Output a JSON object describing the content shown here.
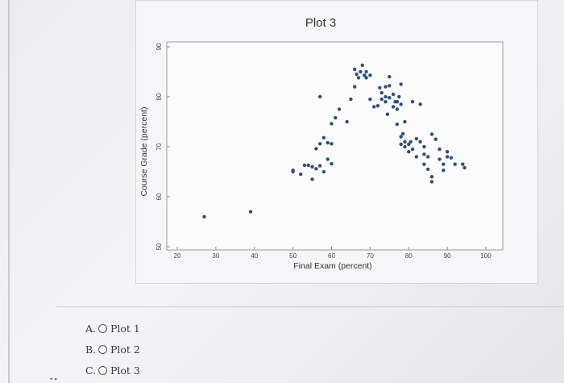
{
  "chart_data": {
    "type": "scatter",
    "title": "Plot 3",
    "xlabel": "Final Exam (percent)",
    "ylabel": "Course Grade (percent)",
    "xlim": [
      20,
      100
    ],
    "ylim": [
      50,
      90
    ],
    "xticks": [
      "20",
      "30",
      "40",
      "50",
      "60",
      "70",
      "80",
      "90",
      "100"
    ],
    "yticks": [
      "50",
      "60",
      "70",
      "80",
      "90"
    ],
    "grid": false,
    "point_color": "#2f4f7a",
    "points": [
      [
        27,
        56
      ],
      [
        39,
        57
      ],
      [
        50,
        65
      ],
      [
        50,
        65.3
      ],
      [
        52,
        64.5
      ],
      [
        53,
        66.3
      ],
      [
        54,
        66.3
      ],
      [
        55,
        63.5
      ],
      [
        55,
        66
      ],
      [
        56,
        65.6
      ],
      [
        56,
        69.6
      ],
      [
        57,
        66.2
      ],
      [
        57,
        70.6
      ],
      [
        58,
        65
      ],
      [
        58,
        71.8
      ],
      [
        59,
        67.5
      ],
      [
        59,
        70.8
      ],
      [
        60,
        66.6
      ],
      [
        60,
        70.6
      ],
      [
        57,
        80
      ],
      [
        60,
        74.6
      ],
      [
        61,
        75.8
      ],
      [
        62,
        77.5
      ],
      [
        64,
        75
      ],
      [
        65,
        79.5
      ],
      [
        66,
        82
      ],
      [
        66,
        85.5
      ],
      [
        66.5,
        84.5
      ],
      [
        67,
        83.8
      ],
      [
        67.5,
        85
      ],
      [
        68,
        86.3
      ],
      [
        68.5,
        84.3
      ],
      [
        69,
        85
      ],
      [
        69,
        83.8
      ],
      [
        70,
        84.3
      ],
      [
        70,
        79.5
      ],
      [
        71,
        78
      ],
      [
        72,
        78.2
      ],
      [
        72.5,
        81.8
      ],
      [
        73,
        80.8
      ],
      [
        73,
        79.5
      ],
      [
        74,
        82
      ],
      [
        74,
        80
      ],
      [
        74,
        79
      ],
      [
        74.5,
        76.5
      ],
      [
        75,
        82.2
      ],
      [
        75,
        84
      ],
      [
        75,
        79.8
      ],
      [
        76,
        80.5
      ],
      [
        76,
        78
      ],
      [
        76.5,
        79
      ],
      [
        77,
        79
      ],
      [
        77,
        77.5
      ],
      [
        77,
        74.5
      ],
      [
        77.5,
        80
      ],
      [
        78,
        82.5
      ],
      [
        78,
        78.5
      ],
      [
        78,
        70.5
      ],
      [
        78,
        72
      ],
      [
        78.5,
        72.6
      ],
      [
        79,
        71
      ],
      [
        79,
        70
      ],
      [
        79,
        75
      ],
      [
        80,
        70.5
      ],
      [
        80,
        69
      ],
      [
        80.5,
        71
      ],
      [
        81,
        79
      ],
      [
        81,
        69.5
      ],
      [
        82,
        71.6
      ],
      [
        82,
        68
      ],
      [
        83,
        78.5
      ],
      [
        83,
        71
      ],
      [
        84,
        66.5
      ],
      [
        84,
        68.5
      ],
      [
        84,
        70
      ],
      [
        85,
        68
      ],
      [
        85,
        65.5
      ],
      [
        86,
        72.5
      ],
      [
        86,
        64
      ],
      [
        86,
        63
      ],
      [
        87,
        71.5
      ],
      [
        88,
        69.5
      ],
      [
        88,
        67.5
      ],
      [
        89,
        66.5
      ],
      [
        89,
        65.3
      ],
      [
        90,
        69
      ],
      [
        90,
        68
      ],
      [
        91,
        67.8
      ],
      [
        92,
        66.5
      ],
      [
        94,
        66.5
      ],
      [
        94.5,
        65.8
      ]
    ]
  },
  "answer_options": [
    {
      "letter": "A.",
      "label": "Plot 1"
    },
    {
      "letter": "B.",
      "label": "Plot 2"
    },
    {
      "letter": "C.",
      "label": "Plot 3"
    }
  ]
}
